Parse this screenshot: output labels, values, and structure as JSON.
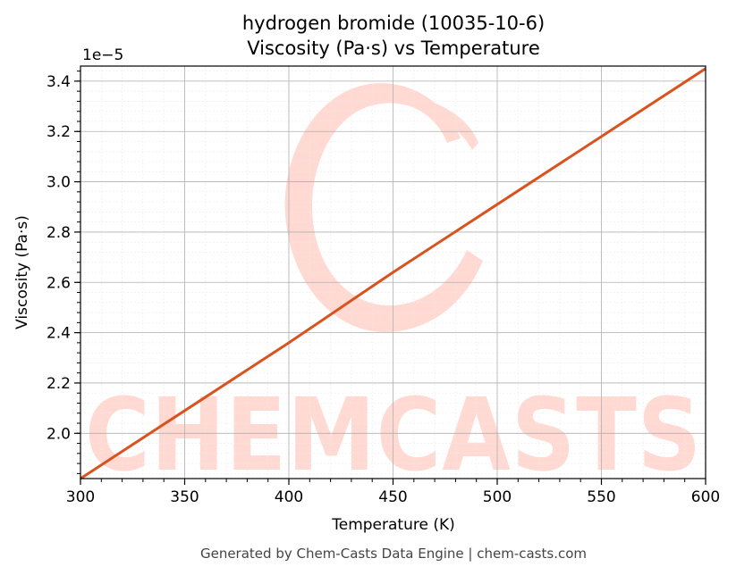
{
  "chart_data": {
    "type": "line",
    "title": "hydrogen bromide (10035-10-6)",
    "subtitle": "Viscosity (Pa·s) vs Temperature",
    "xlabel": "Temperature (K)",
    "ylabel": "Viscosity (Pa·s)",
    "y_offset_label": "1e−5",
    "xlim": [
      300,
      600
    ],
    "ylim": [
      1.82,
      3.46
    ],
    "x_ticks": [
      300,
      350,
      400,
      450,
      500,
      550,
      600
    ],
    "x_tick_labels": [
      "300",
      "350",
      "400",
      "450",
      "500",
      "550",
      "600"
    ],
    "y_ticks": [
      2.0,
      2.2,
      2.4,
      2.6,
      2.8,
      3.0,
      3.2,
      3.4
    ],
    "y_tick_labels": [
      "2.0",
      "2.2",
      "2.4",
      "2.6",
      "2.8",
      "3.0",
      "3.2",
      "3.4"
    ],
    "grid": true,
    "line_color": "#d9531e",
    "series": [
      {
        "x": [
          300,
          350,
          400,
          450,
          500,
          550,
          600
        ],
        "values": [
          1.82,
          2.09,
          2.36,
          2.64,
          2.91,
          3.18,
          3.45
        ]
      }
    ],
    "watermark": "CHEMCASTS",
    "watermark_color": "#ffd9d2"
  },
  "footer": "Generated by Chem-Casts Data Engine | chem-casts.com"
}
